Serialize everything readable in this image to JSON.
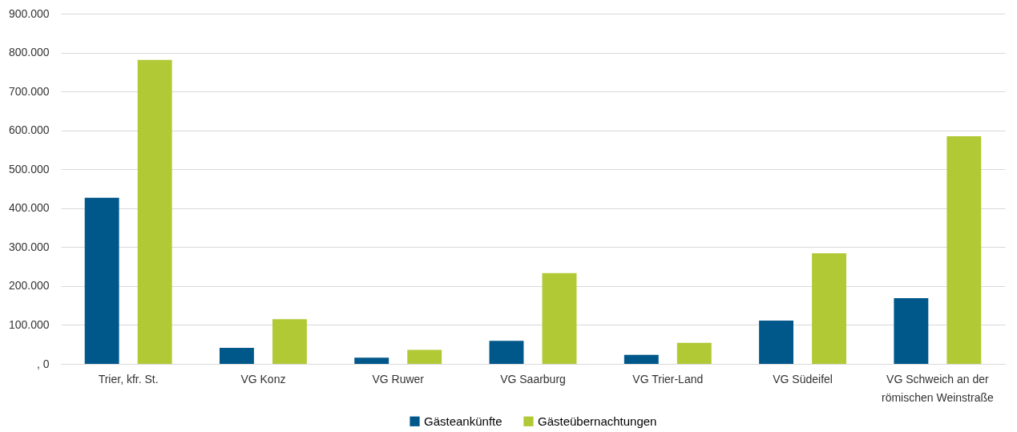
{
  "chart_data": {
    "type": "bar",
    "categories": [
      "Trier, kfr. St.",
      "VG Konz",
      "VG Ruwer",
      "VG Saarburg",
      "VG Trier-Land",
      "VG Südeifel",
      "VG Schweich an der römischen Weinstraße"
    ],
    "series": [
      {
        "name": "Gästeankünfte",
        "color": "#00578a",
        "values": [
          427000,
          41000,
          16000,
          59000,
          23000,
          111000,
          169000
        ]
      },
      {
        "name": "Gästeübernachtungen",
        "color": "#b0c934",
        "values": [
          781000,
          115000,
          36000,
          233000,
          54000,
          284000,
          585000
        ]
      }
    ],
    "ylim": [
      0,
      900000
    ],
    "yticks": [
      {
        "value": 0,
        "label": ", 0"
      },
      {
        "value": 100000,
        "label": "100.000"
      },
      {
        "value": 200000,
        "label": "200.000"
      },
      {
        "value": 300000,
        "label": "300.000"
      },
      {
        "value": 400000,
        "label": "400.000"
      },
      {
        "value": 500000,
        "label": "500.000"
      },
      {
        "value": 600000,
        "label": "600.000"
      },
      {
        "value": 700000,
        "label": "700.000"
      },
      {
        "value": 800000,
        "label": "800.000"
      },
      {
        "value": 900000,
        "label": "900.000"
      }
    ],
    "grid": "y",
    "legend": "bottom"
  }
}
